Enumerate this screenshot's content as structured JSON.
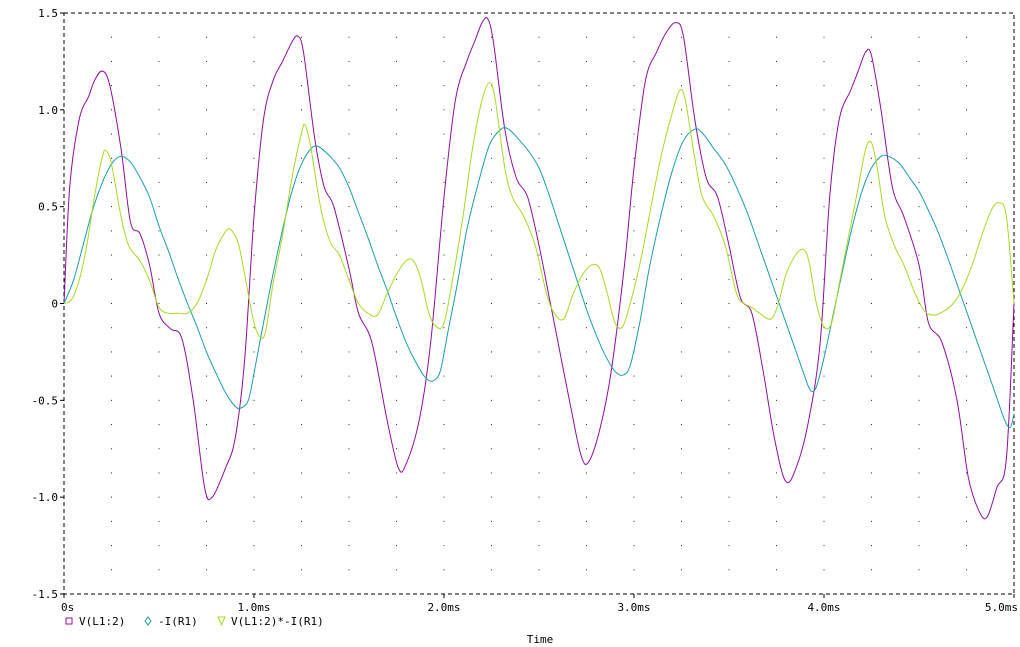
{
  "chart_data": {
    "type": "line",
    "title": "",
    "xlabel": "Time",
    "ylabel": "",
    "xlim": [
      0,
      5.0
    ],
    "ylim": [
      -1.5,
      1.5
    ],
    "x_unit": "ms",
    "x_ticks": [
      {
        "v": 0,
        "label": "0s"
      },
      {
        "v": 1.0,
        "label": "1.0ms"
      },
      {
        "v": 2.0,
        "label": "2.0ms"
      },
      {
        "v": 3.0,
        "label": "3.0ms"
      },
      {
        "v": 4.0,
        "label": "4.0ms"
      },
      {
        "v": 5.0,
        "label": "5.0ms"
      }
    ],
    "y_ticks": [
      {
        "v": 1.5,
        "label": "1.5"
      },
      {
        "v": 1.0,
        "label": "1.0"
      },
      {
        "v": 0.5,
        "label": "0.5"
      },
      {
        "v": 0,
        "label": "0"
      },
      {
        "v": -0.5,
        "label": "-0.5"
      },
      {
        "v": -1.0,
        "label": "-1.0"
      },
      {
        "v": -1.5,
        "label": "-1.5"
      }
    ],
    "grid": "dotted",
    "legend_position": "bottom-left",
    "series": [
      {
        "name": "V(L1:2)",
        "marker": "square",
        "color": "#8b0f9b",
        "points": [
          [
            0,
            0
          ],
          [
            0.03,
            0.6
          ],
          [
            0.08,
            0.95
          ],
          [
            0.13,
            1.07
          ],
          [
            0.16,
            1.15
          ],
          [
            0.2,
            1.2
          ],
          [
            0.24,
            1.13
          ],
          [
            0.3,
            0.8
          ],
          [
            0.35,
            0.42
          ],
          [
            0.4,
            0.36
          ],
          [
            0.45,
            0.2
          ],
          [
            0.5,
            -0.05
          ],
          [
            0.56,
            -0.13
          ],
          [
            0.62,
            -0.18
          ],
          [
            0.68,
            -0.5
          ],
          [
            0.74,
            -0.95
          ],
          [
            0.78,
            -1.0
          ],
          [
            0.85,
            -0.85
          ],
          [
            0.9,
            -0.7
          ],
          [
            0.95,
            -0.3
          ],
          [
            1.0,
            0.45
          ],
          [
            1.05,
            0.95
          ],
          [
            1.1,
            1.15
          ],
          [
            1.15,
            1.25
          ],
          [
            1.2,
            1.35
          ],
          [
            1.23,
            1.38
          ],
          [
            1.26,
            1.3
          ],
          [
            1.32,
            0.85
          ],
          [
            1.37,
            0.6
          ],
          [
            1.42,
            0.5
          ],
          [
            1.5,
            0.18
          ],
          [
            1.55,
            -0.05
          ],
          [
            1.62,
            -0.2
          ],
          [
            1.7,
            -0.6
          ],
          [
            1.76,
            -0.85
          ],
          [
            1.8,
            -0.83
          ],
          [
            1.87,
            -0.6
          ],
          [
            1.93,
            -0.2
          ],
          [
            2.0,
            0.55
          ],
          [
            2.06,
            1.05
          ],
          [
            2.12,
            1.25
          ],
          [
            2.16,
            1.35
          ],
          [
            2.2,
            1.45
          ],
          [
            2.23,
            1.47
          ],
          [
            2.26,
            1.35
          ],
          [
            2.32,
            0.9
          ],
          [
            2.38,
            0.65
          ],
          [
            2.44,
            0.55
          ],
          [
            2.5,
            0.3
          ],
          [
            2.56,
            0.0
          ],
          [
            2.6,
            -0.2
          ],
          [
            2.66,
            -0.5
          ],
          [
            2.72,
            -0.78
          ],
          [
            2.76,
            -0.82
          ],
          [
            2.82,
            -0.65
          ],
          [
            2.88,
            -0.35
          ],
          [
            2.95,
            0.2
          ],
          [
            3.0,
            0.7
          ],
          [
            3.06,
            1.15
          ],
          [
            3.12,
            1.3
          ],
          [
            3.17,
            1.4
          ],
          [
            3.22,
            1.45
          ],
          [
            3.26,
            1.38
          ],
          [
            3.32,
            0.95
          ],
          [
            3.38,
            0.65
          ],
          [
            3.44,
            0.55
          ],
          [
            3.5,
            0.3
          ],
          [
            3.56,
            0.03
          ],
          [
            3.62,
            -0.05
          ],
          [
            3.68,
            -0.35
          ],
          [
            3.74,
            -0.7
          ],
          [
            3.8,
            -0.92
          ],
          [
            3.86,
            -0.83
          ],
          [
            3.92,
            -0.6
          ],
          [
            3.98,
            -0.2
          ],
          [
            4.03,
            0.55
          ],
          [
            4.08,
            0.95
          ],
          [
            4.14,
            1.1
          ],
          [
            4.18,
            1.2
          ],
          [
            4.22,
            1.3
          ],
          [
            4.25,
            1.28
          ],
          [
            4.3,
            1.0
          ],
          [
            4.36,
            0.6
          ],
          [
            4.42,
            0.45
          ],
          [
            4.5,
            0.2
          ],
          [
            4.55,
            -0.1
          ],
          [
            4.62,
            -0.2
          ],
          [
            4.7,
            -0.5
          ],
          [
            4.76,
            -0.9
          ],
          [
            4.82,
            -1.08
          ],
          [
            4.86,
            -1.1
          ],
          [
            4.91,
            -0.95
          ],
          [
            4.96,
            -0.8
          ],
          [
            5.0,
            0.0
          ]
        ]
      },
      {
        "name": "-I(R1)",
        "marker": "diamond",
        "color": "#1b9bb0",
        "points": [
          [
            0,
            0
          ],
          [
            0.05,
            0.12
          ],
          [
            0.1,
            0.3
          ],
          [
            0.15,
            0.48
          ],
          [
            0.2,
            0.62
          ],
          [
            0.25,
            0.72
          ],
          [
            0.3,
            0.76
          ],
          [
            0.35,
            0.73
          ],
          [
            0.4,
            0.65
          ],
          [
            0.45,
            0.55
          ],
          [
            0.5,
            0.4
          ],
          [
            0.55,
            0.27
          ],
          [
            0.6,
            0.13
          ],
          [
            0.65,
            0.0
          ],
          [
            0.7,
            -0.12
          ],
          [
            0.75,
            -0.25
          ],
          [
            0.8,
            -0.36
          ],
          [
            0.85,
            -0.46
          ],
          [
            0.9,
            -0.53
          ],
          [
            0.93,
            -0.54
          ],
          [
            0.97,
            -0.5
          ],
          [
            1.0,
            -0.36
          ],
          [
            1.05,
            -0.1
          ],
          [
            1.1,
            0.15
          ],
          [
            1.15,
            0.38
          ],
          [
            1.2,
            0.58
          ],
          [
            1.25,
            0.72
          ],
          [
            1.3,
            0.8
          ],
          [
            1.34,
            0.81
          ],
          [
            1.4,
            0.76
          ],
          [
            1.45,
            0.7
          ],
          [
            1.5,
            0.6
          ],
          [
            1.55,
            0.47
          ],
          [
            1.6,
            0.34
          ],
          [
            1.65,
            0.2
          ],
          [
            1.7,
            0.07
          ],
          [
            1.75,
            -0.07
          ],
          [
            1.8,
            -0.2
          ],
          [
            1.85,
            -0.3
          ],
          [
            1.9,
            -0.38
          ],
          [
            1.94,
            -0.4
          ],
          [
            1.98,
            -0.35
          ],
          [
            2.02,
            -0.15
          ],
          [
            2.07,
            0.1
          ],
          [
            2.12,
            0.38
          ],
          [
            2.18,
            0.62
          ],
          [
            2.24,
            0.82
          ],
          [
            2.3,
            0.9
          ],
          [
            2.34,
            0.9
          ],
          [
            2.4,
            0.84
          ],
          [
            2.45,
            0.78
          ],
          [
            2.5,
            0.7
          ],
          [
            2.55,
            0.57
          ],
          [
            2.6,
            0.42
          ],
          [
            2.65,
            0.27
          ],
          [
            2.7,
            0.12
          ],
          [
            2.75,
            -0.03
          ],
          [
            2.8,
            -0.16
          ],
          [
            2.85,
            -0.27
          ],
          [
            2.9,
            -0.35
          ],
          [
            2.94,
            -0.37
          ],
          [
            2.98,
            -0.32
          ],
          [
            3.03,
            -0.1
          ],
          [
            3.08,
            0.18
          ],
          [
            3.14,
            0.45
          ],
          [
            3.2,
            0.68
          ],
          [
            3.26,
            0.84
          ],
          [
            3.32,
            0.9
          ],
          [
            3.36,
            0.88
          ],
          [
            3.42,
            0.8
          ],
          [
            3.48,
            0.72
          ],
          [
            3.54,
            0.6
          ],
          [
            3.6,
            0.46
          ],
          [
            3.65,
            0.32
          ],
          [
            3.7,
            0.18
          ],
          [
            3.75,
            0.04
          ],
          [
            3.8,
            -0.1
          ],
          [
            3.85,
            -0.24
          ],
          [
            3.9,
            -0.38
          ],
          [
            3.93,
            -0.45
          ],
          [
            3.96,
            -0.43
          ],
          [
            4.0,
            -0.28
          ],
          [
            4.05,
            -0.05
          ],
          [
            4.1,
            0.18
          ],
          [
            4.15,
            0.4
          ],
          [
            4.2,
            0.58
          ],
          [
            4.25,
            0.7
          ],
          [
            4.3,
            0.76
          ],
          [
            4.34,
            0.76
          ],
          [
            4.4,
            0.72
          ],
          [
            4.45,
            0.65
          ],
          [
            4.5,
            0.58
          ],
          [
            4.55,
            0.48
          ],
          [
            4.6,
            0.37
          ],
          [
            4.65,
            0.24
          ],
          [
            4.7,
            0.1
          ],
          [
            4.75,
            -0.04
          ],
          [
            4.8,
            -0.18
          ],
          [
            4.85,
            -0.32
          ],
          [
            4.9,
            -0.46
          ],
          [
            4.95,
            -0.6
          ],
          [
            4.98,
            -0.64
          ],
          [
            5.0,
            -0.57
          ]
        ]
      },
      {
        "name": "V(L1:2)*-I(R1)",
        "marker": "triangle-down",
        "color": "#a8d822",
        "points": [
          [
            0,
            0
          ],
          [
            0.04,
            0.02
          ],
          [
            0.08,
            0.12
          ],
          [
            0.12,
            0.3
          ],
          [
            0.16,
            0.55
          ],
          [
            0.2,
            0.75
          ],
          [
            0.22,
            0.79
          ],
          [
            0.25,
            0.72
          ],
          [
            0.3,
            0.45
          ],
          [
            0.34,
            0.3
          ],
          [
            0.4,
            0.22
          ],
          [
            0.45,
            0.12
          ],
          [
            0.5,
            -0.02
          ],
          [
            0.55,
            -0.05
          ],
          [
            0.6,
            -0.05
          ],
          [
            0.65,
            -0.05
          ],
          [
            0.7,
            0.0
          ],
          [
            0.75,
            0.12
          ],
          [
            0.8,
            0.28
          ],
          [
            0.85,
            0.37
          ],
          [
            0.88,
            0.38
          ],
          [
            0.92,
            0.3
          ],
          [
            0.96,
            0.1
          ],
          [
            1.0,
            -0.1
          ],
          [
            1.03,
            -0.17
          ],
          [
            1.06,
            -0.15
          ],
          [
            1.1,
            0.1
          ],
          [
            1.15,
            0.35
          ],
          [
            1.2,
            0.65
          ],
          [
            1.25,
            0.88
          ],
          [
            1.27,
            0.92
          ],
          [
            1.3,
            0.8
          ],
          [
            1.35,
            0.5
          ],
          [
            1.4,
            0.32
          ],
          [
            1.45,
            0.25
          ],
          [
            1.5,
            0.12
          ],
          [
            1.55,
            0.0
          ],
          [
            1.6,
            -0.05
          ],
          [
            1.65,
            -0.06
          ],
          [
            1.7,
            0.05
          ],
          [
            1.75,
            0.15
          ],
          [
            1.8,
            0.22
          ],
          [
            1.84,
            0.22
          ],
          [
            1.88,
            0.12
          ],
          [
            1.92,
            -0.05
          ],
          [
            1.96,
            -0.12
          ],
          [
            2.0,
            -0.1
          ],
          [
            2.05,
            0.15
          ],
          [
            2.1,
            0.45
          ],
          [
            2.15,
            0.8
          ],
          [
            2.2,
            1.05
          ],
          [
            2.24,
            1.14
          ],
          [
            2.27,
            1.05
          ],
          [
            2.32,
            0.7
          ],
          [
            2.36,
            0.55
          ],
          [
            2.42,
            0.45
          ],
          [
            2.48,
            0.3
          ],
          [
            2.54,
            0.05
          ],
          [
            2.58,
            -0.05
          ],
          [
            2.63,
            -0.08
          ],
          [
            2.68,
            0.05
          ],
          [
            2.73,
            0.15
          ],
          [
            2.78,
            0.2
          ],
          [
            2.82,
            0.18
          ],
          [
            2.86,
            0.05
          ],
          [
            2.9,
            -0.1
          ],
          [
            2.94,
            -0.12
          ],
          [
            2.98,
            0.0
          ],
          [
            3.03,
            0.2
          ],
          [
            3.08,
            0.45
          ],
          [
            3.14,
            0.75
          ],
          [
            3.2,
            0.98
          ],
          [
            3.24,
            1.1
          ],
          [
            3.27,
            1.05
          ],
          [
            3.32,
            0.75
          ],
          [
            3.36,
            0.55
          ],
          [
            3.42,
            0.45
          ],
          [
            3.48,
            0.3
          ],
          [
            3.54,
            0.05
          ],
          [
            3.58,
            0.0
          ],
          [
            3.62,
            -0.02
          ],
          [
            3.66,
            -0.05
          ],
          [
            3.72,
            -0.08
          ],
          [
            3.76,
            0.0
          ],
          [
            3.8,
            0.15
          ],
          [
            3.85,
            0.25
          ],
          [
            3.89,
            0.28
          ],
          [
            3.92,
            0.22
          ],
          [
            3.96,
            0.0
          ],
          [
            4.0,
            -0.12
          ],
          [
            4.04,
            -0.1
          ],
          [
            4.08,
            0.1
          ],
          [
            4.13,
            0.35
          ],
          [
            4.18,
            0.6
          ],
          [
            4.22,
            0.8
          ],
          [
            4.25,
            0.83
          ],
          [
            4.28,
            0.7
          ],
          [
            4.32,
            0.45
          ],
          [
            4.37,
            0.3
          ],
          [
            4.42,
            0.2
          ],
          [
            4.48,
            0.05
          ],
          [
            4.53,
            -0.04
          ],
          [
            4.58,
            -0.06
          ],
          [
            4.63,
            -0.04
          ],
          [
            4.68,
            0.0
          ],
          [
            4.73,
            0.08
          ],
          [
            4.78,
            0.2
          ],
          [
            4.83,
            0.35
          ],
          [
            4.88,
            0.48
          ],
          [
            4.92,
            0.52
          ],
          [
            4.96,
            0.45
          ],
          [
            5.0,
            0.0
          ]
        ]
      }
    ]
  }
}
